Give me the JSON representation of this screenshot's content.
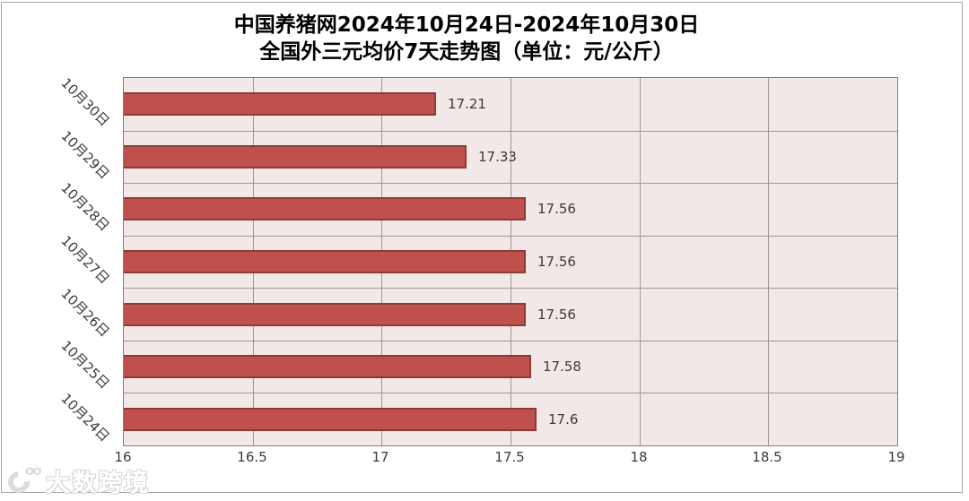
{
  "chart_data": {
    "type": "bar",
    "orientation": "horizontal",
    "title_line1": "中国养猪网2024年10月24日-2024年10月30日",
    "title_line2": "全国外三元均价7天走势图（单位：元/公斤）",
    "categories": [
      "10月30日",
      "10月29日",
      "10月28日",
      "10月27日",
      "10月26日",
      "10月25日",
      "10月24日"
    ],
    "values": [
      17.21,
      17.33,
      17.56,
      17.56,
      17.56,
      17.58,
      17.6
    ],
    "value_labels": [
      "17.21",
      "17.33",
      "17.56",
      "17.56",
      "17.56",
      "17.58",
      "17.6"
    ],
    "x_ticks": [
      "16",
      "16.5",
      "17",
      "17.5",
      "18",
      "18.5",
      "19"
    ],
    "x_min": 16,
    "x_max": 19,
    "unit": "元/公斤",
    "grid": true,
    "legend": "none",
    "colors": {
      "bar_fill": "#c0504d",
      "bar_border": "#8e3a37",
      "plot_bg": "#f2e8e7",
      "gridline": "#9a9a9a",
      "frame_border": "#a6a6a6",
      "text": "#3a3a3a"
    }
  },
  "watermark": {
    "text": "大数跨境"
  }
}
